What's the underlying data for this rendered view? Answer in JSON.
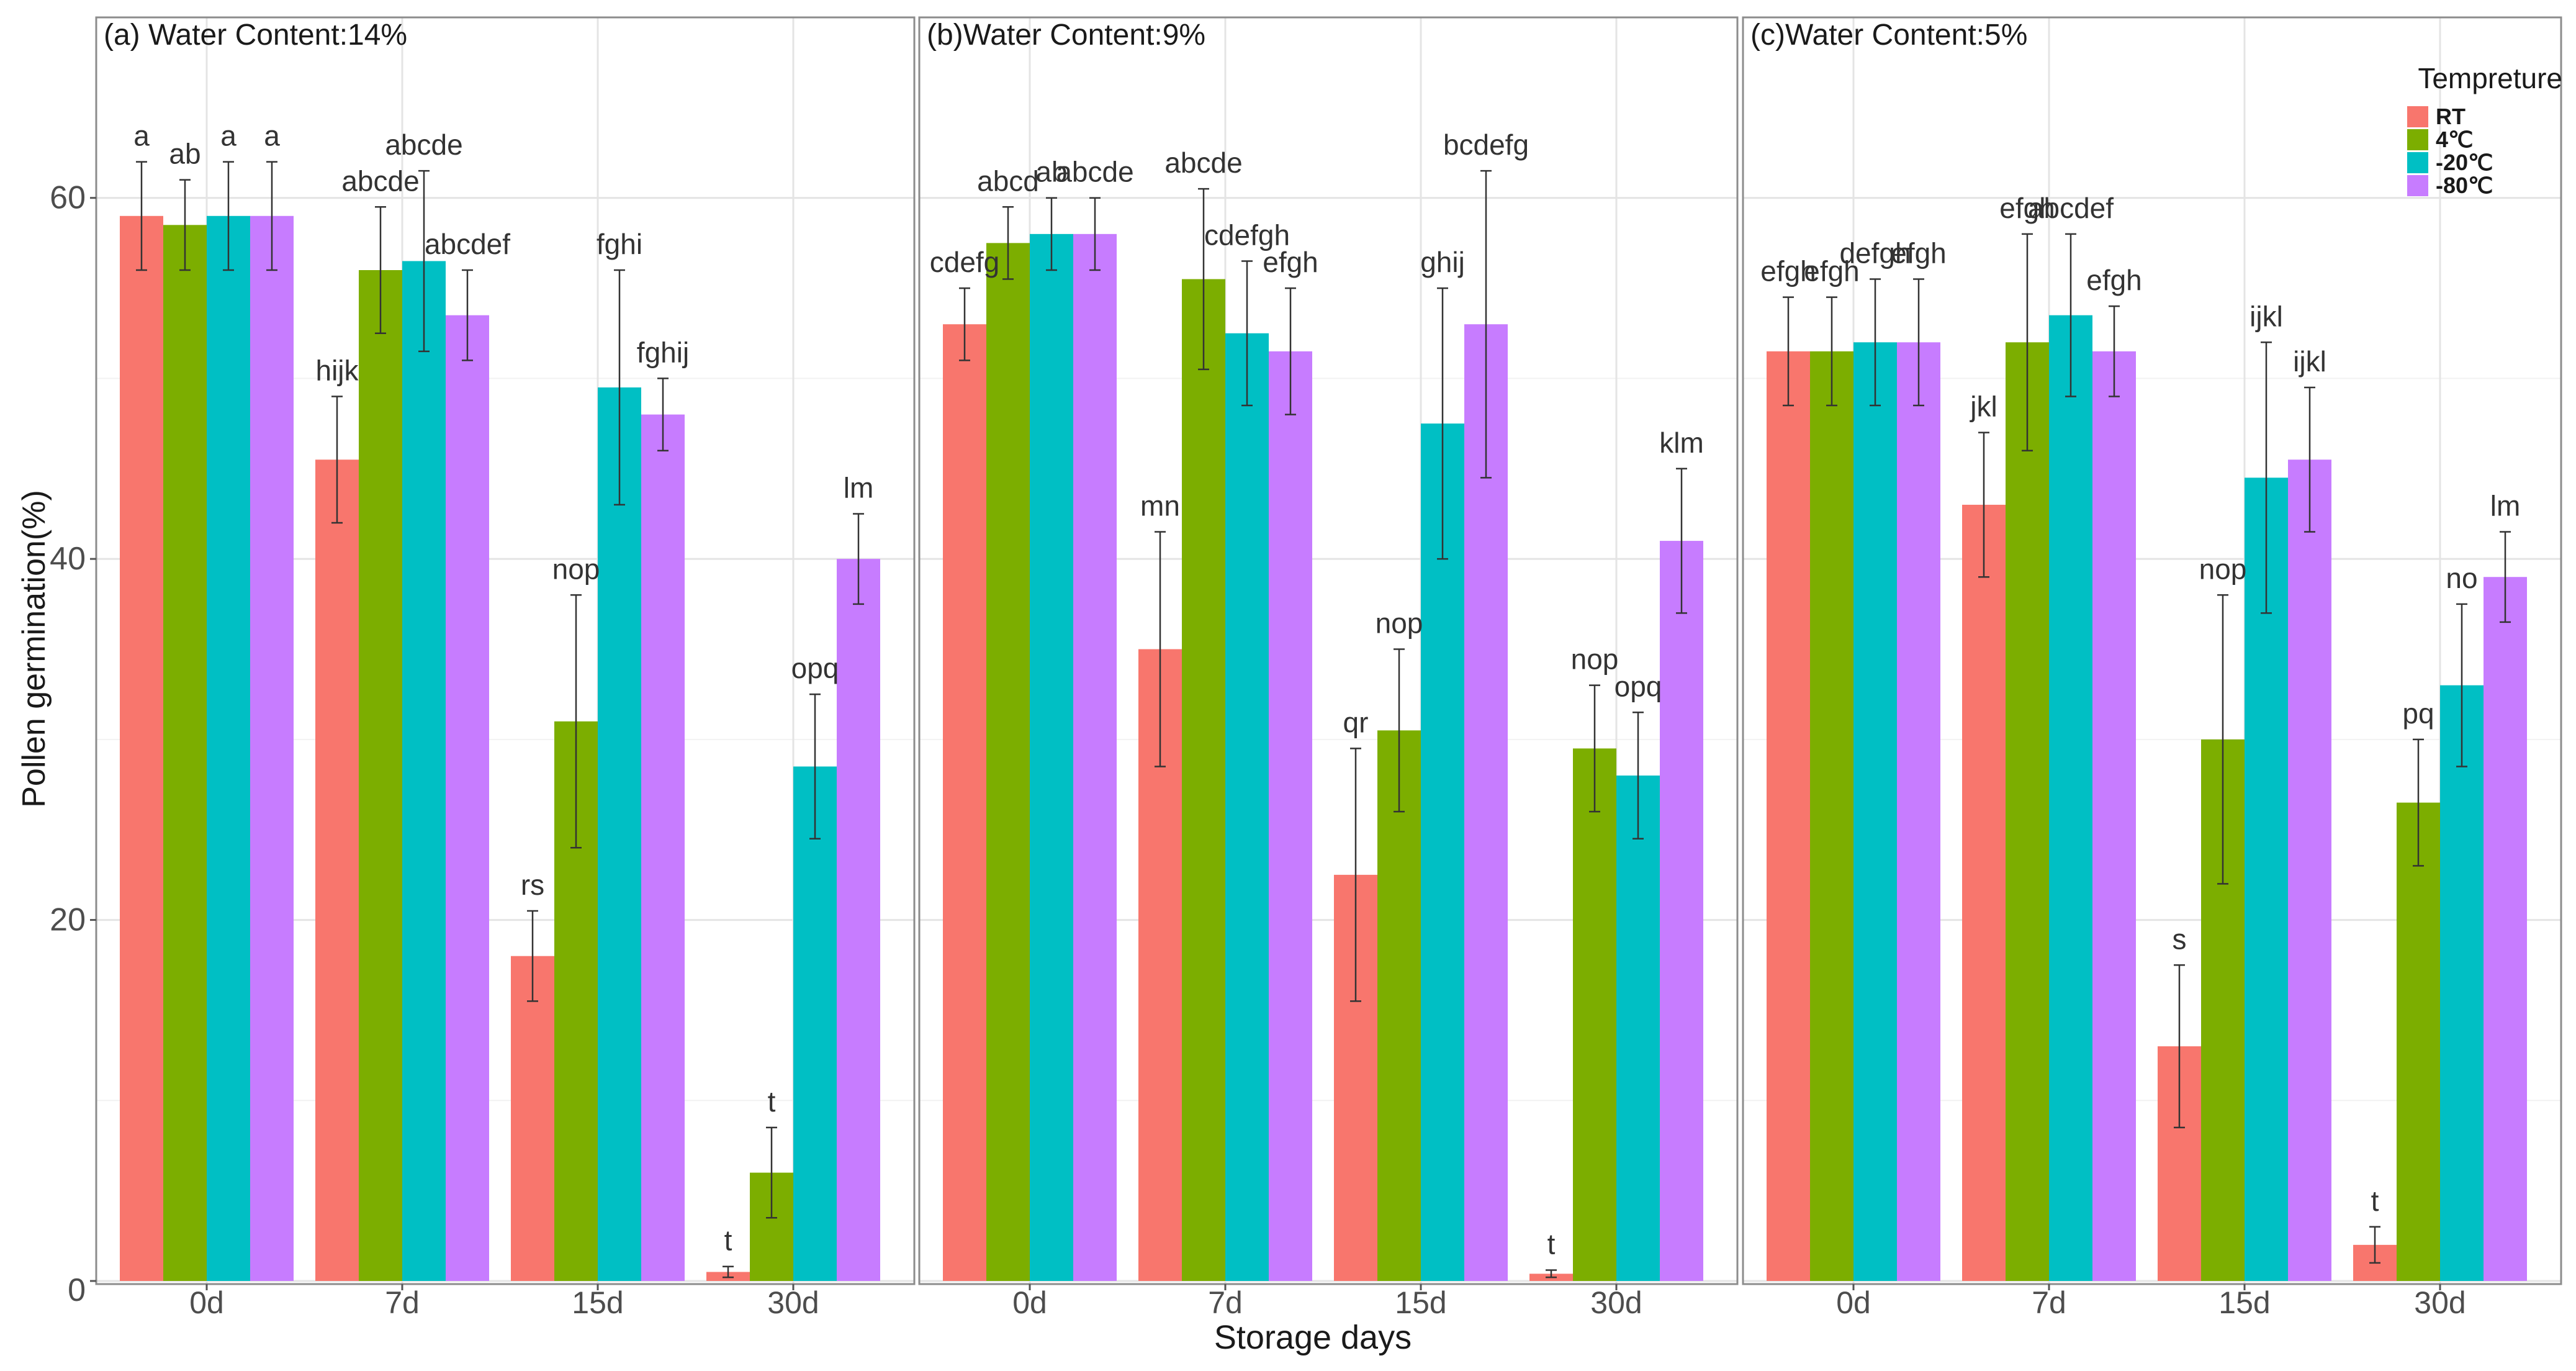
{
  "chart_data": {
    "type": "bar",
    "xlabel": "Storage days",
    "ylabel": "Pollen germination(%)",
    "ylim": [
      0,
      60
    ],
    "yticks": [
      0,
      20,
      40,
      60
    ],
    "grid": true,
    "legend": {
      "title": "Tempreture",
      "position": "top-right",
      "entries": [
        "RT",
        "4℃",
        "-20℃",
        "-80℃"
      ]
    },
    "series_colors": [
      "#F8766D",
      "#7CAE00",
      "#00BFC4",
      "#C77CFF"
    ],
    "categories": [
      "0d",
      "7d",
      "15d",
      "30d"
    ],
    "panels": [
      {
        "title": "(a) Water Content:14%",
        "series": [
          {
            "name": "RT",
            "values": [
              59.0,
              45.5,
              18.0,
              0.5
            ],
            "errors": [
              3.0,
              3.5,
              2.5,
              0.3
            ],
            "labels": [
              "a",
              "hijk",
              "rs",
              "t"
            ]
          },
          {
            "name": "4℃",
            "values": [
              58.5,
              56.0,
              31.0,
              6.0
            ],
            "errors": [
              2.5,
              3.5,
              7.0,
              2.5
            ],
            "labels": [
              "ab",
              "abcde",
              "nop",
              "t"
            ]
          },
          {
            "name": "-20℃",
            "values": [
              59.0,
              56.5,
              49.5,
              28.5
            ],
            "errors": [
              3.0,
              5.0,
              6.5,
              4.0
            ],
            "labels": [
              "a",
              "abcde",
              "fghi",
              "opq"
            ]
          },
          {
            "name": "-80℃",
            "values": [
              59.0,
              53.5,
              48.0,
              40.0
            ],
            "errors": [
              3.0,
              2.5,
              2.0,
              2.5
            ],
            "labels": [
              "a",
              "abcdef",
              "fghij",
              "lm"
            ]
          }
        ]
      },
      {
        "title": "(b)Water Content:9%",
        "series": [
          {
            "name": "RT",
            "values": [
              53.0,
              35.0,
              22.5,
              0.4
            ],
            "errors": [
              2.0,
              6.5,
              7.0,
              0.2
            ],
            "labels": [
              "cdefg",
              "mn",
              "qr",
              "t"
            ]
          },
          {
            "name": "4℃",
            "values": [
              57.5,
              55.5,
              30.5,
              29.5
            ],
            "errors": [
              2.0,
              5.0,
              4.5,
              3.5
            ],
            "labels": [
              "abcd",
              "abcde",
              "nop",
              "nop"
            ]
          },
          {
            "name": "-20℃",
            "values": [
              58.0,
              52.5,
              47.5,
              28.0
            ],
            "errors": [
              2.0,
              4.0,
              7.5,
              3.5
            ],
            "labels": [
              "ab",
              "cdefgh",
              "ghij",
              "opq"
            ]
          },
          {
            "name": "-80℃",
            "values": [
              58.0,
              51.5,
              53.0,
              41.0
            ],
            "errors": [
              2.0,
              3.5,
              8.5,
              4.0
            ],
            "labels": [
              "abcde",
              "efgh",
              "bcdefg",
              "klm"
            ]
          }
        ]
      },
      {
        "title": "(c)Water Content:5%",
        "series": [
          {
            "name": "RT",
            "values": [
              51.5,
              43.0,
              13.0,
              2.0
            ],
            "errors": [
              3.0,
              4.0,
              4.5,
              1.0
            ],
            "labels": [
              "efgh",
              "jkl",
              "s",
              "t"
            ]
          },
          {
            "name": "4℃",
            "values": [
              51.5,
              52.0,
              30.0,
              26.5
            ],
            "errors": [
              3.0,
              6.0,
              8.0,
              3.5
            ],
            "labels": [
              "efgh",
              "efgh",
              "nop",
              "pq"
            ]
          },
          {
            "name": "-20℃",
            "values": [
              52.0,
              53.5,
              44.5,
              33.0
            ],
            "errors": [
              3.5,
              4.5,
              7.5,
              4.5
            ],
            "labels": [
              "defgh",
              "abcdef",
              "ijkl",
              "no"
            ]
          },
          {
            "name": "-80℃",
            "values": [
              52.0,
              51.5,
              45.5,
              39.0
            ],
            "errors": [
              3.5,
              2.5,
              4.0,
              2.5
            ],
            "labels": [
              "efgh",
              "efgh",
              "ijkl",
              "lm"
            ]
          }
        ]
      }
    ]
  }
}
